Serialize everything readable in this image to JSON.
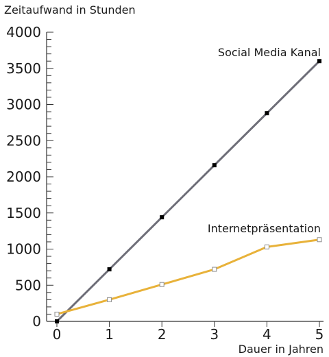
{
  "chart_data": {
    "type": "line",
    "title": "",
    "ylabel": "Zeitaufwand in Stunden",
    "xlabel": "Dauer in Jahren",
    "x": [
      0,
      1,
      2,
      3,
      4,
      5
    ],
    "xticks": [
      "0",
      "1",
      "2",
      "3",
      "4",
      "5"
    ],
    "yticks": [
      "0",
      "500",
      "1000",
      "1500",
      "2000",
      "2500",
      "3000",
      "3500",
      "4000"
    ],
    "xlim": [
      0,
      5
    ],
    "ylim": [
      0,
      4000
    ],
    "grid": false,
    "series": [
      {
        "name": "Social Media Kanal",
        "values": [
          0,
          720,
          1440,
          2160,
          2880,
          3600
        ],
        "color": "#6e6e78",
        "marker": "filled-square",
        "marker_color": "#000000"
      },
      {
        "name": "Internetpräsentation",
        "values": [
          100,
          300,
          510,
          720,
          1030,
          1130
        ],
        "color": "#e8b23a",
        "marker": "hollow-square",
        "marker_color": "#8a8a8a"
      }
    ]
  }
}
